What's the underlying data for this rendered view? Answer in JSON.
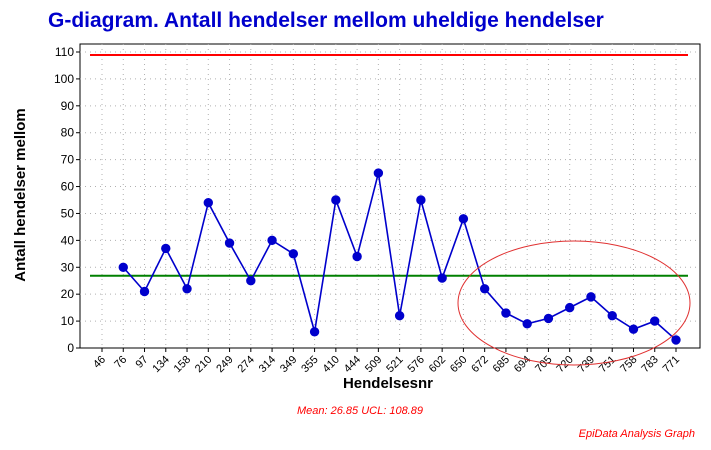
{
  "chart_data": {
    "type": "line",
    "title": "G-diagram. Antall hendelser mellom uheldige hendelser",
    "xlabel": "Hendelsesnr",
    "ylabel": "Antall hendelser mellom",
    "ylim": [
      0,
      110
    ],
    "yticks": [
      0,
      10,
      20,
      30,
      40,
      50,
      60,
      70,
      80,
      90,
      100,
      110
    ],
    "categories": [
      "46",
      "76",
      "97",
      "134",
      "158",
      "210",
      "249",
      "274",
      "314",
      "349",
      "355",
      "410",
      "444",
      "509",
      "521",
      "576",
      "602",
      "650",
      "672",
      "685",
      "694",
      "705",
      "720",
      "739",
      "751",
      "758",
      "783",
      "771"
    ],
    "series": [
      {
        "values": [
          null,
          30,
          21,
          37,
          22,
          54,
          39,
          25,
          40,
          35,
          6,
          55,
          34,
          65,
          12,
          55,
          26,
          48,
          22,
          13,
          9,
          11,
          15,
          19,
          12,
          7,
          10,
          3
        ],
        "color": "#0000cc"
      }
    ],
    "reference_lines": [
      {
        "value": 26.85,
        "color": "#008000"
      },
      {
        "value": 108.89,
        "color": "#ff0000"
      }
    ],
    "grid": true,
    "annotation": "Mean: 26.85 UCL: 108.89",
    "annotation_color": "#ff0000",
    "credit": "EpiData Analysis Graph",
    "highlight_ellipse_color": "#e03030"
  }
}
